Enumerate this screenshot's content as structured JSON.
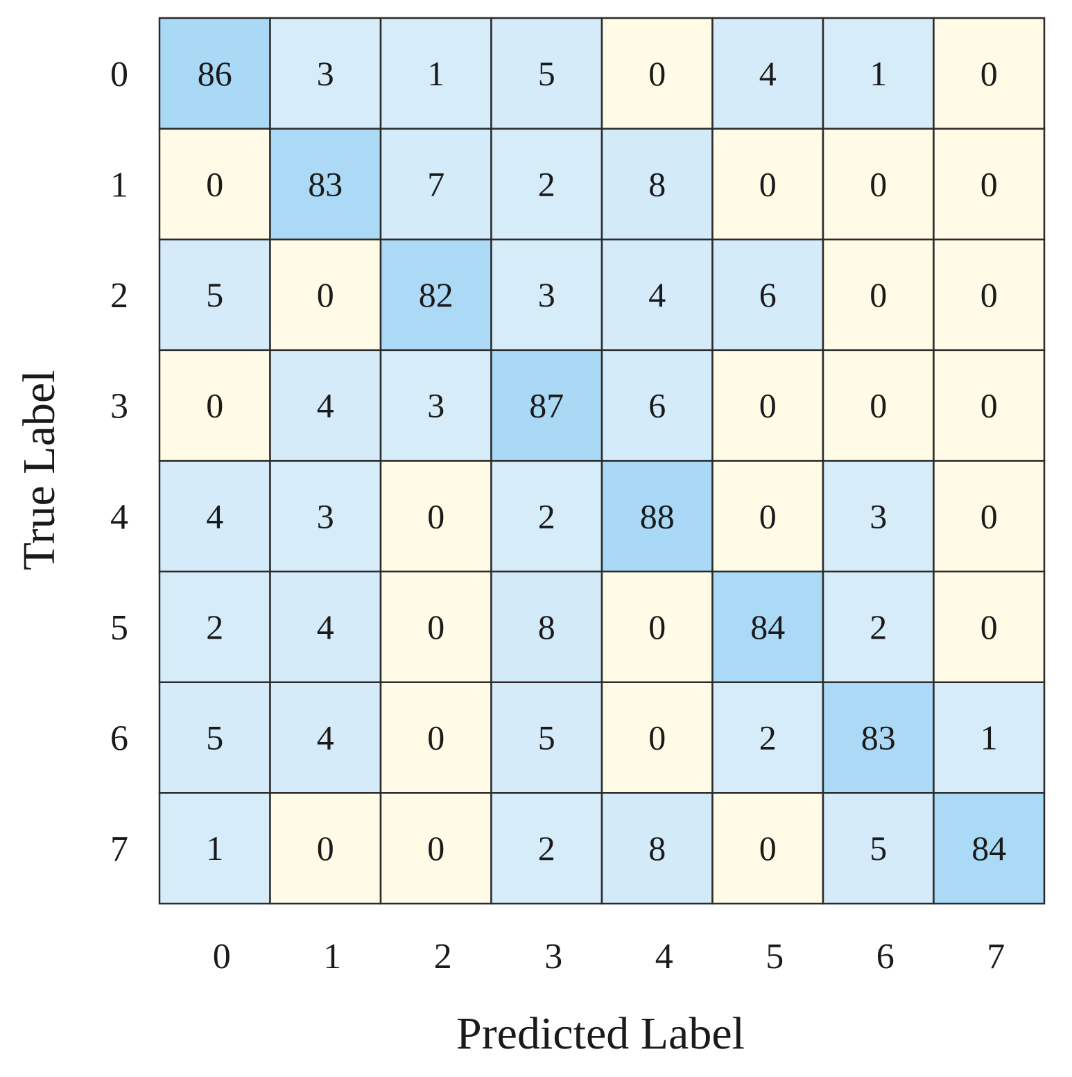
{
  "chart_data": {
    "type": "heatmap",
    "title": "",
    "xlabel": "Predicted Label",
    "ylabel": "True Label",
    "x_categories": [
      "0",
      "1",
      "2",
      "3",
      "4",
      "5",
      "6",
      "7"
    ],
    "y_categories": [
      "0",
      "1",
      "2",
      "3",
      "4",
      "5",
      "6",
      "7"
    ],
    "values": [
      [
        86,
        3,
        1,
        5,
        0,
        4,
        1,
        0
      ],
      [
        0,
        83,
        7,
        2,
        8,
        0,
        0,
        0
      ],
      [
        5,
        0,
        82,
        3,
        4,
        6,
        0,
        0
      ],
      [
        0,
        4,
        3,
        87,
        6,
        0,
        0,
        0
      ],
      [
        4,
        3,
        0,
        2,
        88,
        0,
        3,
        0
      ],
      [
        2,
        4,
        0,
        8,
        0,
        84,
        2,
        0
      ],
      [
        5,
        4,
        0,
        5,
        0,
        2,
        83,
        1
      ],
      [
        1,
        0,
        0,
        2,
        8,
        0,
        5,
        84
      ]
    ],
    "colors": {
      "zero": "#fffbe7",
      "low": "#d7ecf9",
      "high": "#a9d9f6"
    },
    "grid": true,
    "legend": "none"
  }
}
